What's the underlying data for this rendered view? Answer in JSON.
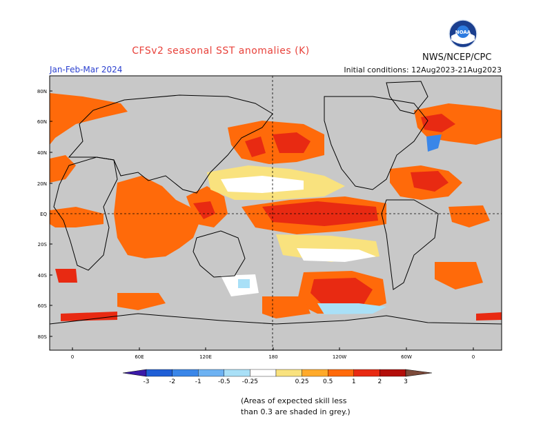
{
  "header": {
    "title": "CFSv2 seasonal SST anomalies (K)",
    "agency": "NWS/NCEP/CPC",
    "season": "Jan-Feb-Mar 2024",
    "initial_conditions": "Initial conditions: 12Aug2023-21Aug2023",
    "logo_text": "NOAA"
  },
  "map": {
    "lat_labels": [
      "80N",
      "60N",
      "40N",
      "20N",
      "EQ",
      "20S",
      "40S",
      "60S",
      "80S"
    ],
    "lon_labels": [
      "0",
      "60E",
      "120E",
      "180",
      "120W",
      "60W",
      "0"
    ]
  },
  "colorbar": {
    "tick_labels": [
      "-3",
      "-2",
      "-1",
      "-0.5",
      "-0.25",
      "0.25",
      "0.5",
      "1",
      "2",
      "3"
    ],
    "colors": [
      "#3a1aa8",
      "#1f5fd6",
      "#3a86e8",
      "#6db2f2",
      "#a9e0f7",
      "#ffffff",
      "#f9e27e",
      "#ffaa2a",
      "#ff6a0a",
      "#e82a12",
      "#b30e0a",
      "#7c4a3a"
    ]
  },
  "footnote": {
    "line1": "(Areas of expected skill less",
    "line2": "than 0.3 are shaded in grey.)"
  },
  "colors": {
    "mask_grey": "#c8c8c8",
    "land": "#c8c8c8"
  }
}
